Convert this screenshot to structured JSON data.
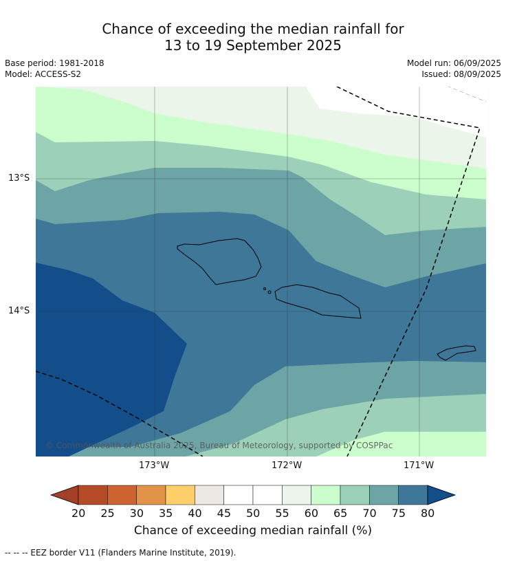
{
  "title_line1": "Chance of exceeding the median rainfall for",
  "title_line2": "13 to 19 September 2025",
  "base_period": "Base period: 1981-2018",
  "model": "Model: ACCESS-S2",
  "model_run": "Model run: 06/09/2025",
  "issued": "Issued: 08/09/2025",
  "lat_labels": [
    "13°S",
    "14°S"
  ],
  "lon_labels": [
    "173°W",
    "172°W",
    "171°W"
  ],
  "copyright": "© Commonwealth of Australia 2025, Bureau of Meteorology, supported by COSPPac",
  "colorbar": {
    "title": "Chance of exceeding median rainfall (%)",
    "ticks": [
      "20",
      "25",
      "30",
      "35",
      "40",
      "45",
      "50",
      "55",
      "60",
      "65",
      "70",
      "75",
      "80"
    ],
    "colors": {
      "below20": "#a3402a",
      "b20_25": "#b44c29",
      "b25_30": "#cd6430",
      "b30_35": "#e29548",
      "b35_40": "#fdcf6a",
      "b40_45": "#ede8e4",
      "b45_50": "#ffffff",
      "b50_55": "#ffffff",
      "b55_60": "#ebf5e9",
      "b60_65": "#ccfdcc",
      "b65_70": "#9dd0b8",
      "b70_75": "#6da4a6",
      "b75_80": "#3f7799",
      "above80": "#144e8a"
    }
  },
  "footer": "-- -- -- EEZ border V11 (Flanders Marine Institute, 2019)."
}
